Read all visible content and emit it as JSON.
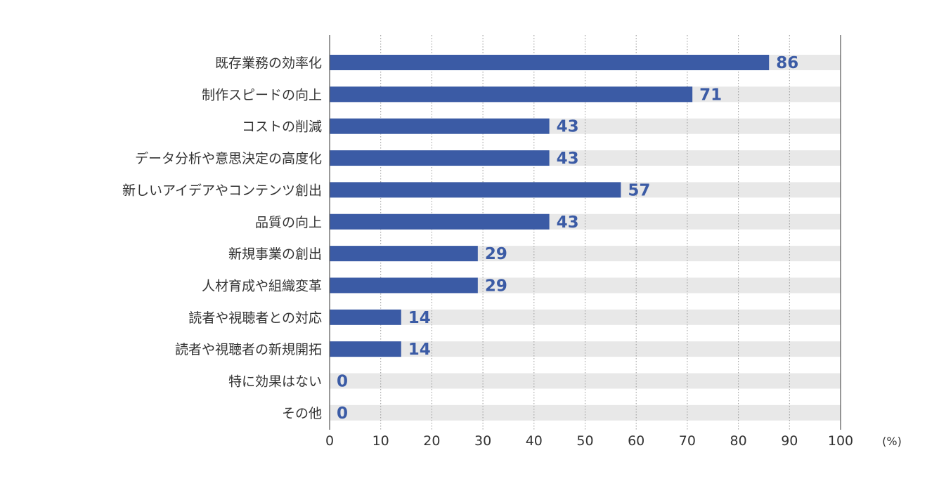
{
  "chart_data": {
    "type": "bar",
    "orientation": "horizontal",
    "categories": [
      "既存業務の効率化",
      "制作スピードの向上",
      "コストの削減",
      "データ分析や意思決定の高度化",
      "新しいアイデアやコンテンツ創出",
      "品質の向上",
      "新規事業の創出",
      "人材育成や組織変革",
      "読者や視聴者との対応",
      "読者や視聴者の新規開拓",
      "特に効果はない",
      "その他"
    ],
    "values": [
      86,
      71,
      43,
      43,
      57,
      43,
      29,
      29,
      14,
      14,
      0,
      0
    ],
    "xlim": [
      0,
      100
    ],
    "xticks": [
      0,
      10,
      20,
      30,
      40,
      50,
      60,
      70,
      80,
      90,
      100
    ],
    "unit_label": "(%)",
    "grid": "vertical dotted",
    "colors": {
      "bar": "#3b5ba5",
      "track": "#e8e8e8",
      "value_text": "#3b5ba5",
      "grid": "#999999",
      "axis": "#555555"
    }
  }
}
